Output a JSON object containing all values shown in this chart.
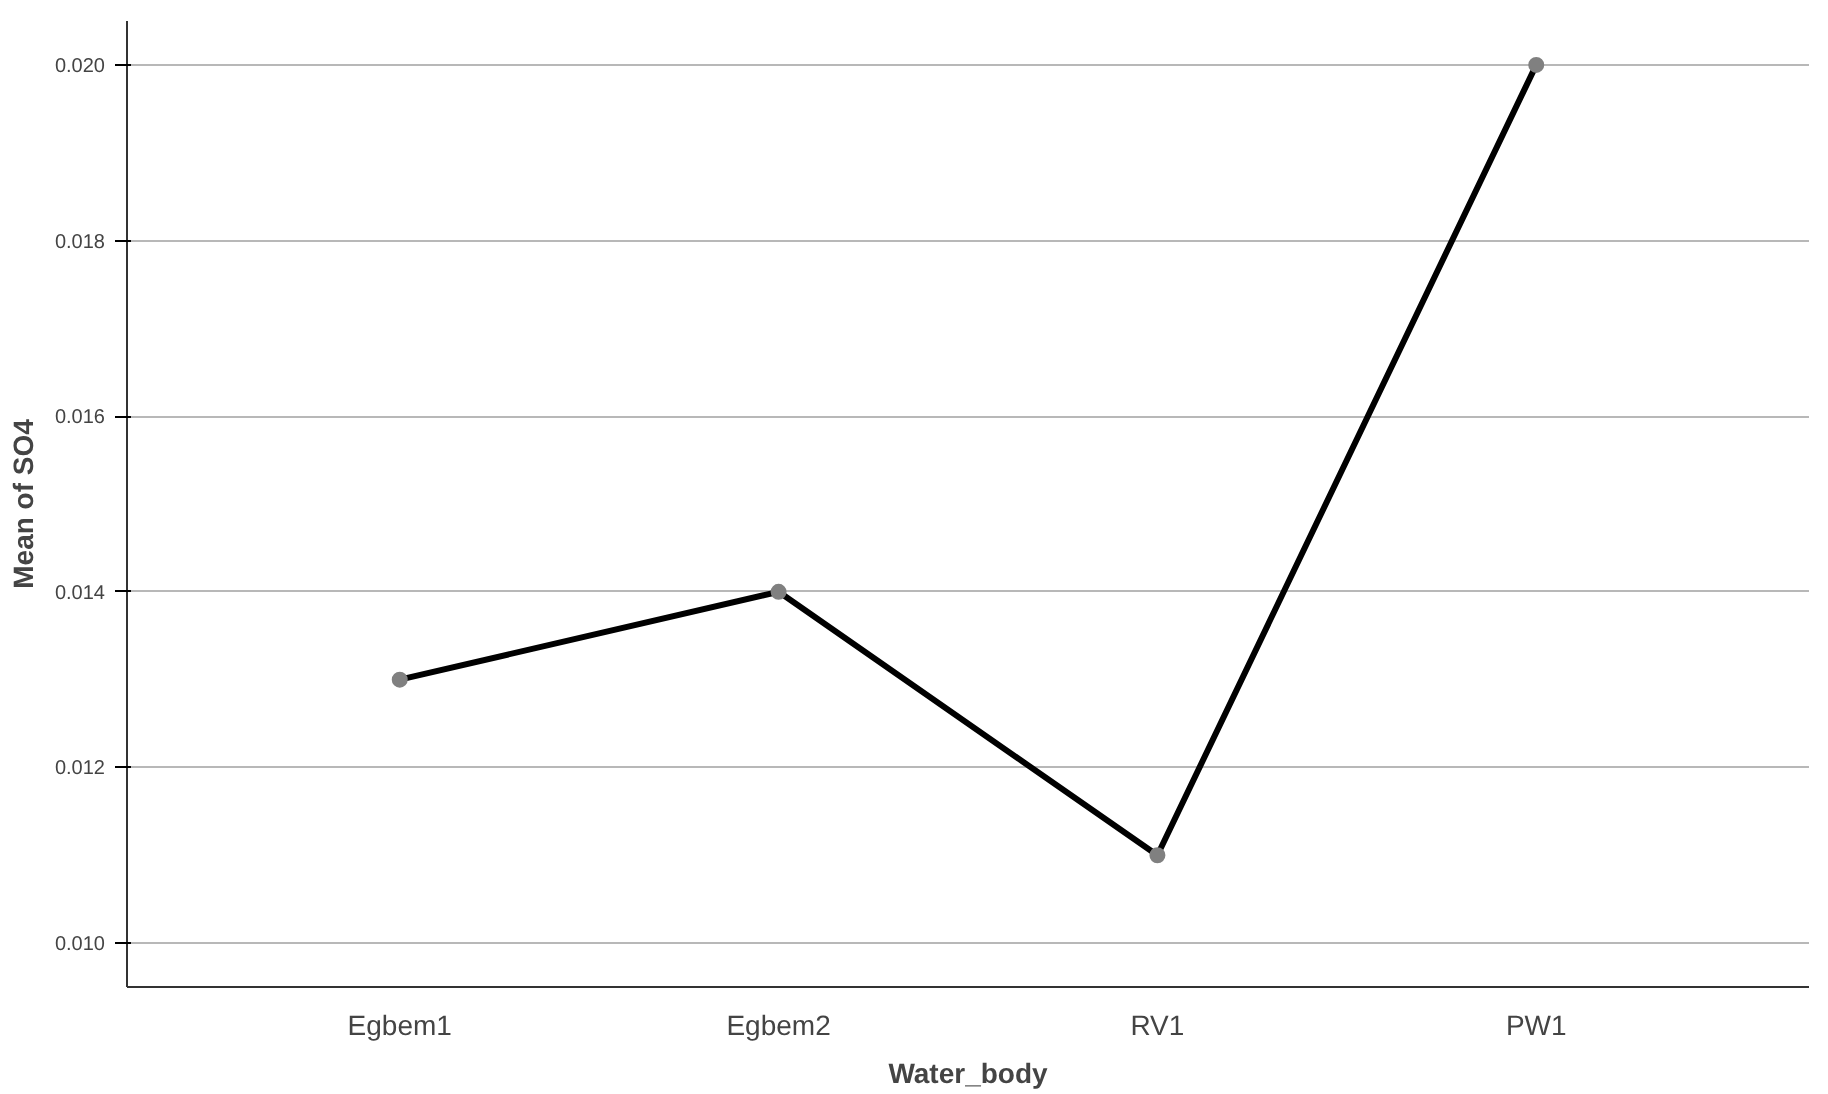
{
  "chart_data": {
    "type": "line",
    "xlabel": "Water_body",
    "ylabel": "Mean of SO4",
    "categories": [
      "Egbem1",
      "Egbem2",
      "RV1",
      "PW1"
    ],
    "series": [
      {
        "color": "#000000",
        "values": [
          0.013,
          0.014,
          0.011,
          0.02
        ]
      }
    ],
    "ylim": [
      0.0095,
      0.0205
    ],
    "yticks": [
      {
        "value": 0.01,
        "label": "0.010"
      },
      {
        "value": 0.012,
        "label": "0.012"
      },
      {
        "value": 0.014,
        "label": "0.014"
      },
      {
        "value": 0.016,
        "label": "0.016"
      },
      {
        "value": 0.018,
        "label": "0.018"
      },
      {
        "value": 0.02,
        "label": "0.020"
      }
    ],
    "grid": "y",
    "marker": "circle",
    "line_style": "solid"
  }
}
